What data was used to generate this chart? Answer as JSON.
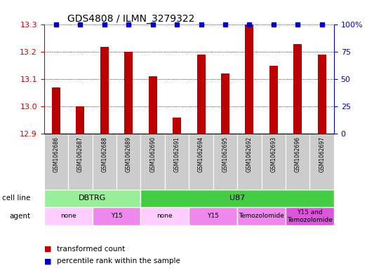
{
  "title": "GDS4808 / ILMN_3279322",
  "samples": [
    "GSM1062686",
    "GSM1062687",
    "GSM1062688",
    "GSM1062689",
    "GSM1062690",
    "GSM1062691",
    "GSM1062694",
    "GSM1062695",
    "GSM1062692",
    "GSM1062693",
    "GSM1062696",
    "GSM1062697"
  ],
  "bar_values": [
    13.07,
    13.0,
    13.22,
    13.2,
    13.11,
    12.96,
    13.19,
    13.12,
    13.3,
    13.15,
    13.23,
    13.19
  ],
  "percentile_values": [
    100,
    100,
    100,
    100,
    100,
    100,
    100,
    100,
    100,
    100,
    100,
    100
  ],
  "bar_color": "#BB0000",
  "pct_color": "#0000BB",
  "ylim_left": [
    12.9,
    13.3
  ],
  "ylim_right": [
    0,
    100
  ],
  "yticks_left": [
    12.9,
    13.0,
    13.1,
    13.2,
    13.3
  ],
  "yticks_right": [
    0,
    25,
    50,
    75,
    100
  ],
  "ytick_labels_right": [
    "0",
    "25",
    "50",
    "75",
    "100%"
  ],
  "cell_line_groups": [
    {
      "label": "DBTRG",
      "start": 0,
      "end": 4,
      "color": "#99EE99"
    },
    {
      "label": "U87",
      "start": 4,
      "end": 12,
      "color": "#44CC44"
    }
  ],
  "agent_groups": [
    {
      "label": "none",
      "start": 0,
      "end": 2,
      "color": "#FFCCFF"
    },
    {
      "label": "Y15",
      "start": 2,
      "end": 4,
      "color": "#EE88EE"
    },
    {
      "label": "none",
      "start": 4,
      "end": 6,
      "color": "#FFCCFF"
    },
    {
      "label": "Y15",
      "start": 6,
      "end": 8,
      "color": "#EE88EE"
    },
    {
      "label": "Temozolomide",
      "start": 8,
      "end": 10,
      "color": "#EE88EE"
    },
    {
      "label": "Y15 and\nTemozolomide",
      "start": 10,
      "end": 12,
      "color": "#DD55DD"
    }
  ],
  "sample_bg_color": "#CCCCCC",
  "left_axis_color": "#CC0000",
  "right_axis_color": "#0000CC",
  "bar_width": 0.35,
  "legend_red_label": "transformed count",
  "legend_blue_label": "percentile rank within the sample"
}
